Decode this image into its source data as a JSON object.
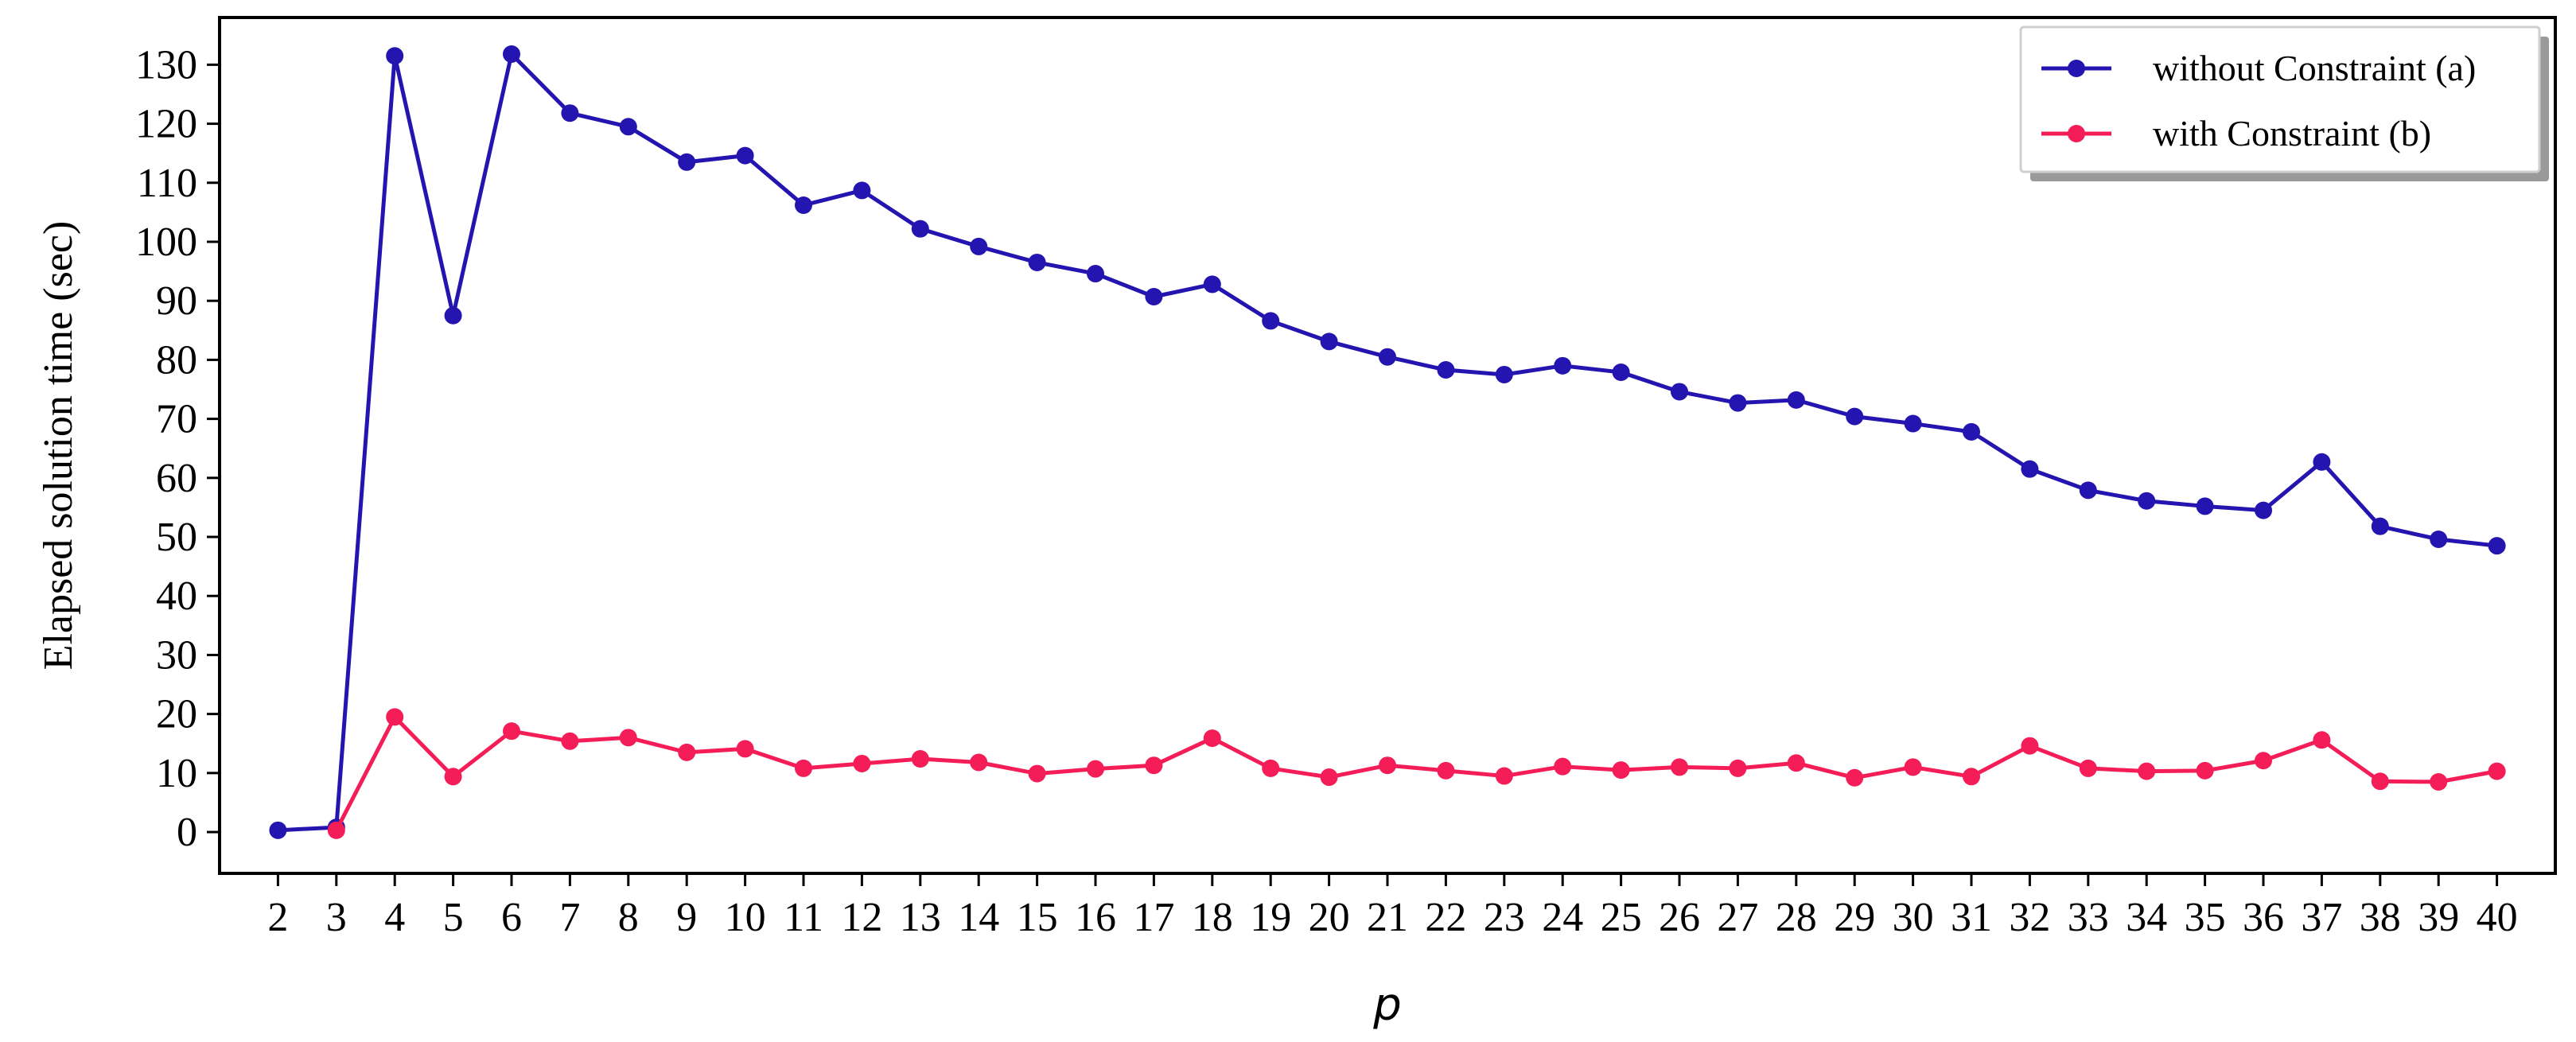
{
  "chart_data": {
    "type": "line",
    "title": "",
    "xlabel": "p",
    "ylabel": "Elapsed solution time (sec)",
    "x": [
      2,
      3,
      4,
      5,
      6,
      7,
      8,
      9,
      10,
      11,
      12,
      13,
      14,
      15,
      16,
      17,
      18,
      19,
      20,
      21,
      22,
      23,
      24,
      25,
      26,
      27,
      28,
      29,
      30,
      31,
      32,
      33,
      34,
      35,
      36,
      37,
      38,
      39,
      40
    ],
    "xlim": [
      1,
      41
    ],
    "ylim": [
      -7,
      138
    ],
    "yticks": [
      0,
      10,
      20,
      30,
      40,
      50,
      60,
      70,
      80,
      90,
      100,
      110,
      120,
      130
    ],
    "grid": false,
    "legend_position": "top-right",
    "series": [
      {
        "name": "without Constraint (a)",
        "color": "#2414b0",
        "values": [
          0.3,
          0.8,
          131.5,
          87.5,
          131.8,
          121.8,
          119.5,
          113.5,
          114.6,
          106.2,
          108.7,
          102.2,
          99.2,
          96.5,
          94.6,
          90.7,
          92.8,
          86.6,
          83.1,
          80.5,
          78.3,
          77.5,
          79.0,
          77.9,
          74.6,
          72.7,
          73.2,
          70.4,
          69.2,
          67.8,
          61.5,
          57.9,
          56.1,
          55.2,
          54.5,
          62.7,
          51.8,
          49.6,
          48.5
        ]
      },
      {
        "name": "with Constraint (b)",
        "color": "#f41d57",
        "values": [
          null,
          0.3,
          19.5,
          9.4,
          17.1,
          15.4,
          16.0,
          13.5,
          14.1,
          10.8,
          11.6,
          12.4,
          11.8,
          9.9,
          10.7,
          11.3,
          15.9,
          10.8,
          9.3,
          11.3,
          10.4,
          9.5,
          11.1,
          10.5,
          11.0,
          10.8,
          11.7,
          9.2,
          11.0,
          9.4,
          14.6,
          10.8,
          10.3,
          10.4,
          12.1,
          15.6,
          8.6,
          8.5,
          10.3
        ]
      }
    ]
  }
}
